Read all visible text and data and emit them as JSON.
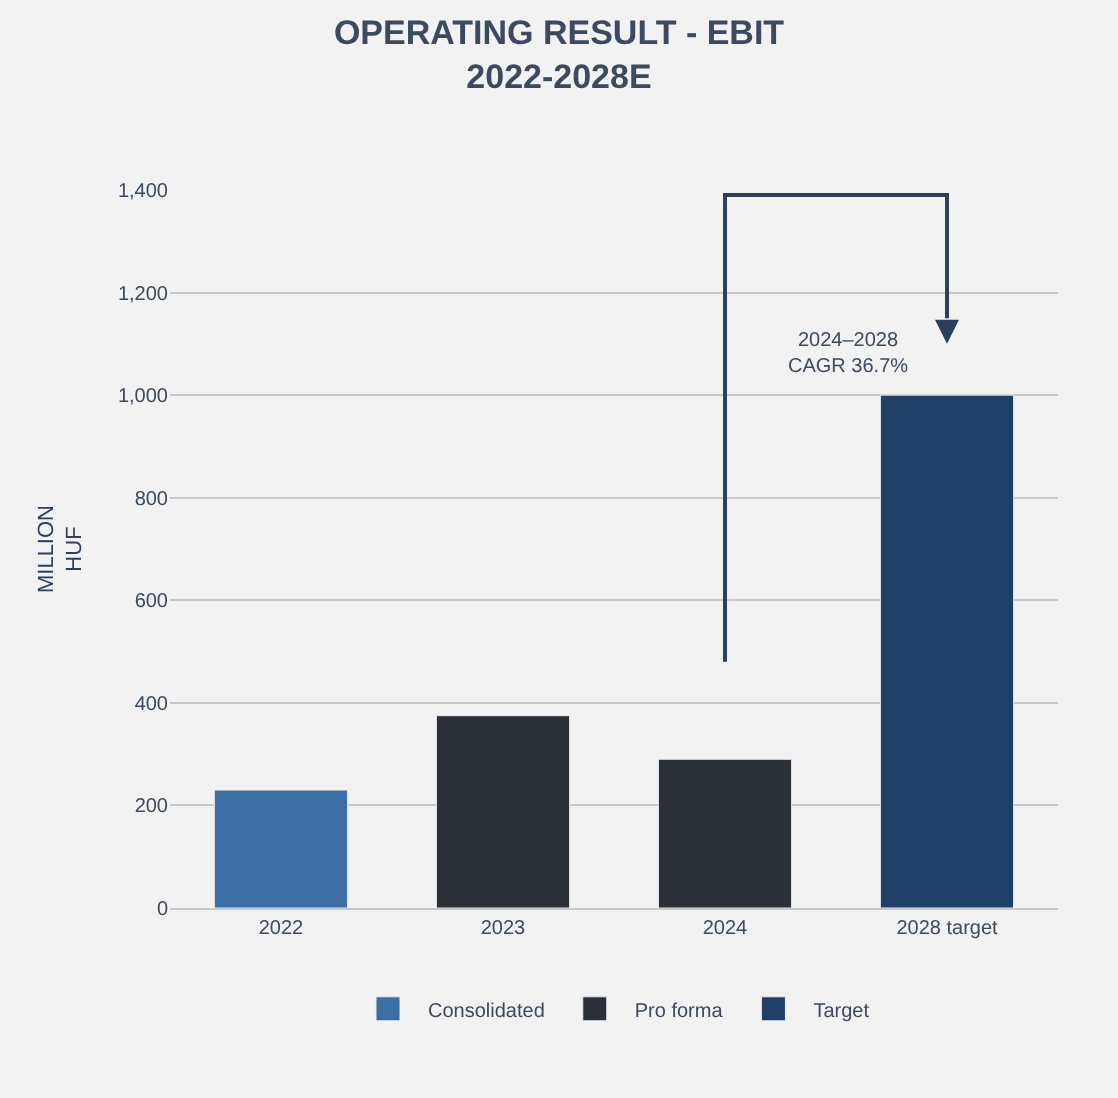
{
  "chart_data": {
    "type": "bar",
    "title": "OPERATING RESULT - EBIT\n2022-2028E",
    "ylabel": "MILLION\nHUF",
    "categories": [
      "2022",
      "2023",
      "2024",
      "2028 target"
    ],
    "series": [
      {
        "name": "Consolidated",
        "color": "#3a6ea5",
        "values": [
          230,
          null,
          null,
          null
        ]
      },
      {
        "name": "Pro forma",
        "color": "#2b2f36",
        "values": [
          null,
          375,
          290,
          null
        ]
      },
      {
        "name": "Target",
        "color": "#1f3f66",
        "values": [
          null,
          null,
          null,
          1000
        ]
      }
    ],
    "ylim": [
      0,
      1400
    ],
    "yticks": [
      0,
      200,
      400,
      600,
      800,
      {
        "value": 1000,
        "label": "1,000"
      },
      {
        "value": 1200,
        "label": "1,200"
      },
      {
        "value": 1400,
        "label": "1,400"
      }
    ],
    "annotations": [
      "2024–2028\nCAGR 36.7%"
    ],
    "grid": "y",
    "legend": "bottom"
  }
}
